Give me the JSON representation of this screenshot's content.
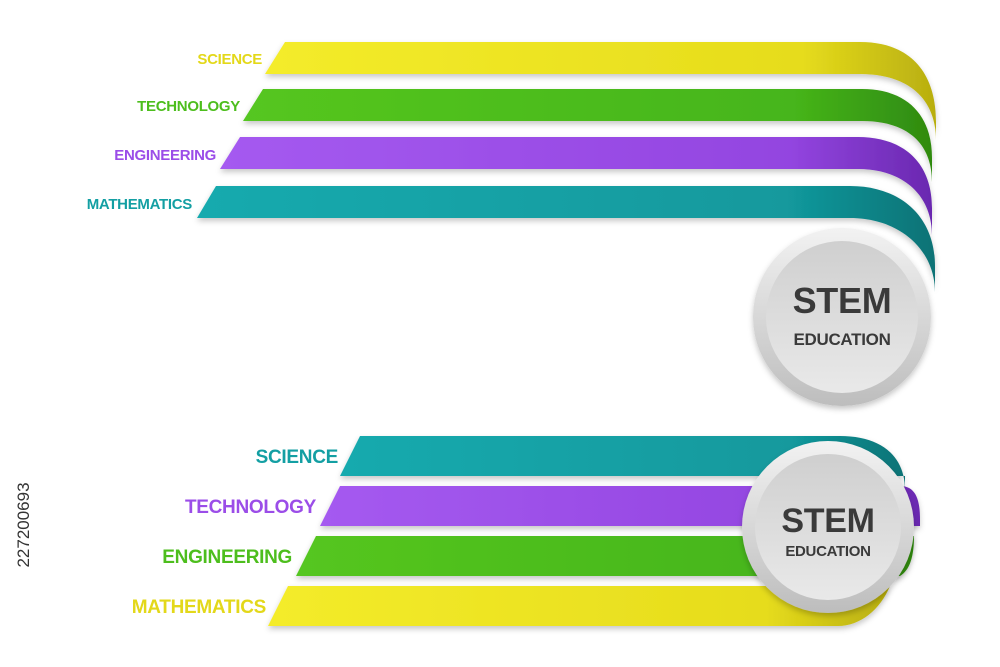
{
  "colors": {
    "yellow": "#ECE21F",
    "green": "#4DBE1D",
    "purple": "#9B4DE8",
    "teal": "#139FA3",
    "badge_text": "#3a3a3a"
  },
  "top_graphic": {
    "bands": [
      {
        "label": "SCIENCE",
        "color": "#ECE21F"
      },
      {
        "label": "TECHNOLOGY",
        "color": "#4DBE1D"
      },
      {
        "label": "ENGINEERING",
        "color": "#9B4DE8"
      },
      {
        "label": "MATHEMATICS",
        "color": "#139FA3"
      }
    ],
    "badge": {
      "title": "STEM",
      "subtitle": "EDUCATION"
    }
  },
  "bottom_graphic": {
    "bands": [
      {
        "label": "SCIENCE",
        "color": "#139FA3"
      },
      {
        "label": "TECHNOLOGY",
        "color": "#9B4DE8"
      },
      {
        "label": "ENGINEERING",
        "color": "#4DBE1D"
      },
      {
        "label": "MATHEMATICS",
        "color": "#ECE21F"
      }
    ],
    "badge": {
      "title": "STEM",
      "subtitle": "EDUCATION"
    }
  },
  "stock_id": "227200693"
}
